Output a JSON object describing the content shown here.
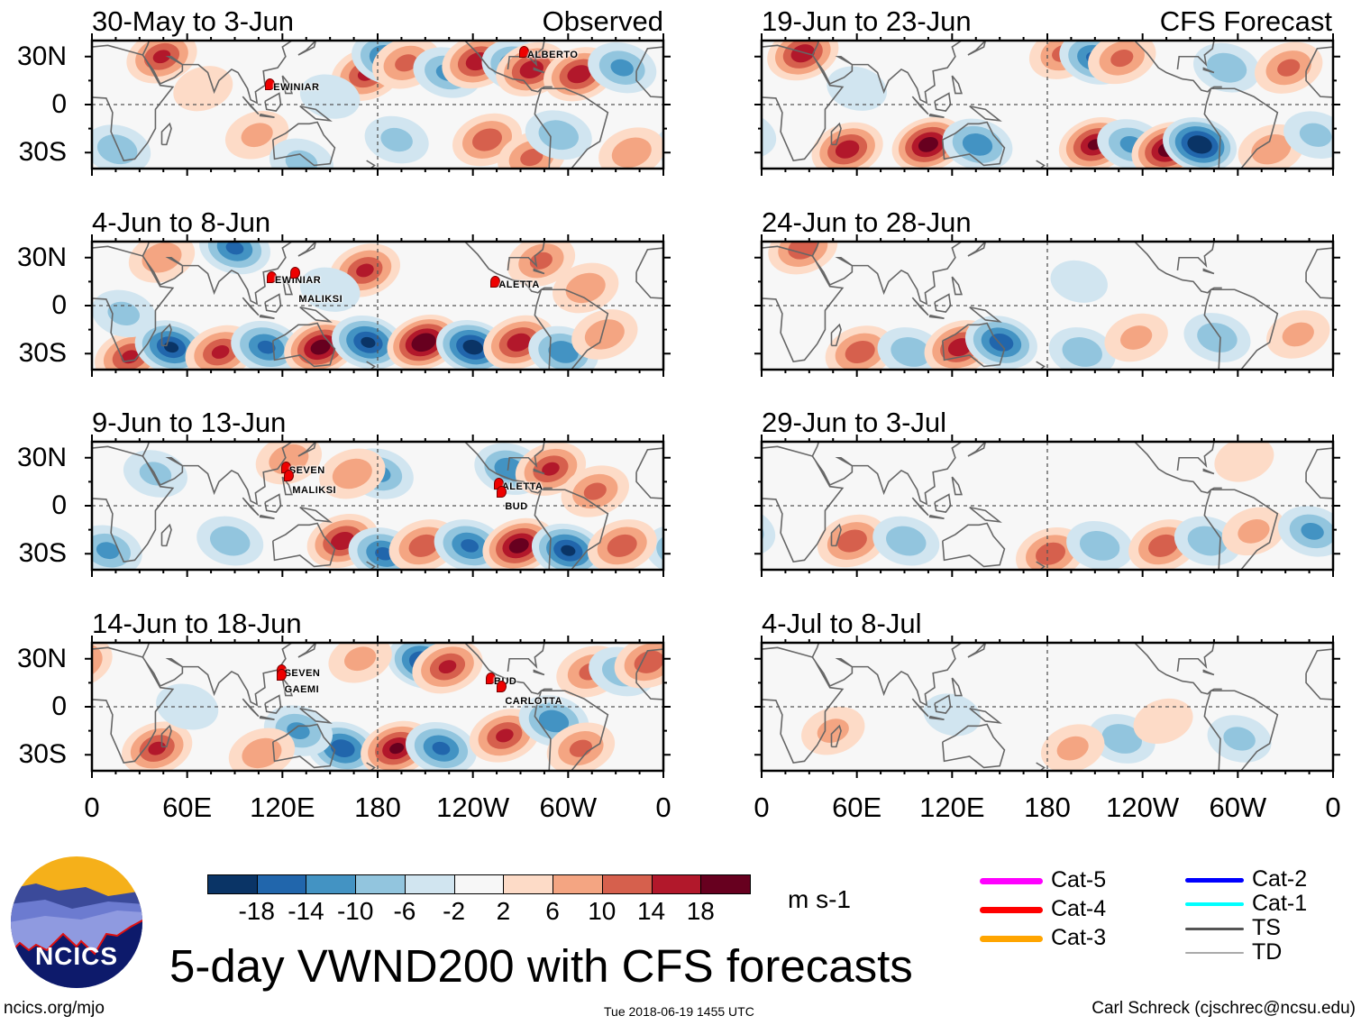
{
  "header": {
    "observed_label": "Observed",
    "forecast_label": "CFS Forecast"
  },
  "axes": {
    "lat_labels": [
      "30N",
      "0",
      "30S"
    ],
    "lon_labels": [
      "0",
      "60E",
      "120E",
      "180",
      "120W",
      "60W",
      "0"
    ]
  },
  "colorbar": {
    "colors": [
      "#0a3466",
      "#2166ac",
      "#4393c3",
      "#92c5de",
      "#d1e5f0",
      "#f7f7f7",
      "#fddbc7",
      "#f4a582",
      "#d6604d",
      "#b2182b",
      "#67001f"
    ],
    "tick_labels": [
      "-18",
      "-14",
      "-10",
      "-6",
      "-2",
      "2",
      "6",
      "10",
      "14",
      "18"
    ],
    "units": "m s-1"
  },
  "legend": {
    "items": [
      {
        "label": "Cat-5",
        "color": "#ff00ff"
      },
      {
        "label": "Cat-4",
        "color": "#ff0000"
      },
      {
        "label": "Cat-3",
        "color": "#ffa500"
      },
      {
        "label": "Cat-2",
        "color": "#0000ff"
      },
      {
        "label": "Cat-1",
        "color": "#00ffff"
      },
      {
        "label": "TS",
        "color": "#555555"
      },
      {
        "label": "TD",
        "color": "#aaaaaa"
      }
    ]
  },
  "title": "5-day VWND200 with CFS forecasts",
  "footer": {
    "site": "ncics.org/mjo",
    "timestamp": "Tue 2018-06-19 1455 UTC",
    "author": "Carl Schreck (cjschrec@ncsu.edu)",
    "logo_text": "NCICS"
  },
  "chart_data": {
    "type": "heatmap",
    "variable": "200-hPa meridional wind anomaly",
    "units": "m s-1",
    "levels": [
      -18,
      -14,
      -10,
      -6,
      -2,
      2,
      6,
      10,
      14,
      18
    ],
    "lon_range": [
      0,
      360
    ],
    "lat_range": [
      -40,
      40
    ],
    "panels": [
      {
        "title": "30-May to 3-Jun",
        "column": "observed",
        "anomaly_centers": [
          [
            44,
            30,
            14
          ],
          [
            173,
            19,
            14
          ],
          [
            186,
            29,
            -14
          ],
          [
            198,
            26,
            10
          ],
          [
            224,
            20,
            -10
          ],
          [
            243,
            27,
            16
          ],
          [
            268,
            24,
            -14
          ],
          [
            277,
            22,
            16
          ],
          [
            307,
            19,
            16
          ],
          [
            334,
            23,
            -10
          ],
          [
            249,
            -22,
            12
          ],
          [
            277,
            -33,
            10
          ],
          [
            16,
            -28,
            -8
          ],
          [
            104,
            -19,
            6
          ],
          [
            192,
            -22,
            -6
          ],
          [
            294,
            -19,
            -8
          ],
          [
            340,
            -30,
            8
          ],
          [
            132,
            -36,
            -6
          ],
          [
            70,
            10,
            4
          ],
          [
            150,
            5,
            -4
          ]
        ],
        "storms": [
          {
            "name": "EWINIAR",
            "lon": 112,
            "lat": 12
          },
          {
            "name": "ALBERTO",
            "lon": 272,
            "lat": 32
          }
        ]
      },
      {
        "title": "4-Jun to 8-Jun",
        "column": "observed",
        "anomaly_centers": [
          [
            90,
            36,
            -14
          ],
          [
            172,
            22,
            14
          ],
          [
            44,
            30,
            8
          ],
          [
            311,
            11,
            8
          ],
          [
            283,
            28,
            10
          ],
          [
            24,
            -32,
            14
          ],
          [
            50,
            -26,
            -18
          ],
          [
            81,
            -29,
            14
          ],
          [
            110,
            -26,
            -14
          ],
          [
            144,
            -26,
            20
          ],
          [
            174,
            -23,
            -18
          ],
          [
            209,
            -23,
            22
          ],
          [
            240,
            -26,
            -20
          ],
          [
            269,
            -23,
            16
          ],
          [
            297,
            -29,
            -12
          ],
          [
            323,
            -18,
            8
          ],
          [
            20,
            -5,
            -6
          ],
          [
            150,
            10,
            -4
          ]
        ],
        "storms": [
          {
            "name": "EWINIAR",
            "lon": 113,
            "lat": 17
          },
          {
            "name": "MALIKSI",
            "lon": 128,
            "lat": 20
          },
          {
            "name": "ALETTA",
            "lon": 254,
            "lat": 14
          }
        ]
      },
      {
        "title": "9-Jun to 13-Jun",
        "column": "observed",
        "anomaly_centers": [
          [
            263,
            23,
            -12
          ],
          [
            289,
            23,
            14
          ],
          [
            181,
            20,
            -10
          ],
          [
            164,
            20,
            8
          ],
          [
            317,
            9,
            10
          ],
          [
            124,
            29,
            8
          ],
          [
            10,
            -28,
            -10
          ],
          [
            158,
            -22,
            16
          ],
          [
            184,
            -30,
            -14
          ],
          [
            209,
            -25,
            12
          ],
          [
            238,
            -25,
            -14
          ],
          [
            269,
            -25,
            20
          ],
          [
            300,
            -28,
            -18
          ],
          [
            334,
            -25,
            12
          ],
          [
            87,
            -22,
            -8
          ],
          [
            40,
            20,
            -6
          ]
        ],
        "storms": [
          {
            "name": "SEVEN",
            "lon": 122,
            "lat": 23
          },
          {
            "name": "MALIKSI",
            "lon": 124,
            "lat": 18
          },
          {
            "name": "ALETTA",
            "lon": 256,
            "lat": 13
          },
          {
            "name": "BUD",
            "lon": 258,
            "lat": 8
          }
        ]
      },
      {
        "title": "14-Jun to 18-Jun",
        "column": "observed",
        "anomaly_centers": [
          [
            209,
            28,
            -18
          ],
          [
            224,
            25,
            14
          ],
          [
            314,
            22,
            10
          ],
          [
            334,
            22,
            -8
          ],
          [
            351,
            28,
            12
          ],
          [
            169,
            30,
            6
          ],
          [
            41,
            -26,
            14
          ],
          [
            158,
            -26,
            -16
          ],
          [
            192,
            -26,
            18
          ],
          [
            220,
            -26,
            -14
          ],
          [
            260,
            -18,
            14
          ],
          [
            291,
            -9,
            -12
          ],
          [
            308,
            -26,
            10
          ],
          [
            130,
            -15,
            -10
          ],
          [
            107,
            -29,
            8
          ],
          [
            60,
            0,
            -5
          ]
        ],
        "storms": [
          {
            "name": "SEVEN",
            "lon": 119,
            "lat": 22
          },
          {
            "name": "GAEMI",
            "lon": 119,
            "lat": 19
          },
          {
            "name": "BUD",
            "lon": 251,
            "lat": 17
          },
          {
            "name": "CARLOTTA",
            "lon": 258,
            "lat": 12
          }
        ]
      },
      {
        "title": "19-Jun to 23-Jun",
        "column": "forecast",
        "anomaly_centers": [
          [
            26,
            32,
            16
          ],
          [
            190,
            32,
            10
          ],
          [
            210,
            29,
            -14
          ],
          [
            227,
            29,
            10
          ],
          [
            293,
            23,
            -8
          ],
          [
            332,
            23,
            10
          ],
          [
            54,
            -28,
            16
          ],
          [
            105,
            -25,
            20
          ],
          [
            136,
            -25,
            -12
          ],
          [
            210,
            -25,
            18
          ],
          [
            233,
            -25,
            -10
          ],
          [
            256,
            -28,
            20
          ],
          [
            276,
            -25,
            -22
          ],
          [
            321,
            -28,
            8
          ],
          [
            349,
            -19,
            -6
          ],
          [
            60,
            10,
            -4
          ]
        ],
        "storms": []
      },
      {
        "title": "24-Jun to 28-Jun",
        "column": "forecast",
        "anomaly_centers": [
          [
            26,
            36,
            12
          ],
          [
            62,
            -29,
            12
          ],
          [
            94,
            -29,
            -8
          ],
          [
            125,
            -26,
            16
          ],
          [
            151,
            -23,
            -16
          ],
          [
            202,
            -29,
            -8
          ],
          [
            236,
            -20,
            6
          ],
          [
            287,
            -20,
            -8
          ],
          [
            338,
            -18,
            6
          ],
          [
            200,
            15,
            -3
          ]
        ],
        "storms": []
      },
      {
        "title": "29-Jun to 3-Jul",
        "column": "forecast",
        "anomaly_centers": [
          [
            57,
            -22,
            12
          ],
          [
            91,
            -22,
            -8
          ],
          [
            182,
            -30,
            12
          ],
          [
            213,
            -25,
            -8
          ],
          [
            253,
            -25,
            12
          ],
          [
            281,
            -22,
            -8
          ],
          [
            310,
            -16,
            6
          ],
          [
            347,
            -16,
            -10
          ],
          [
            304,
            29,
            4
          ]
        ],
        "storms": []
      },
      {
        "title": "4-Jul to 8-Jul",
        "column": "forecast",
        "anomaly_centers": [
          [
            45,
            -15,
            6
          ],
          [
            227,
            -20,
            -8
          ],
          [
            253,
            -9,
            4
          ],
          [
            196,
            -26,
            6
          ],
          [
            301,
            -20,
            -6
          ],
          [
            120,
            -5,
            -3
          ]
        ],
        "storms": []
      }
    ]
  }
}
